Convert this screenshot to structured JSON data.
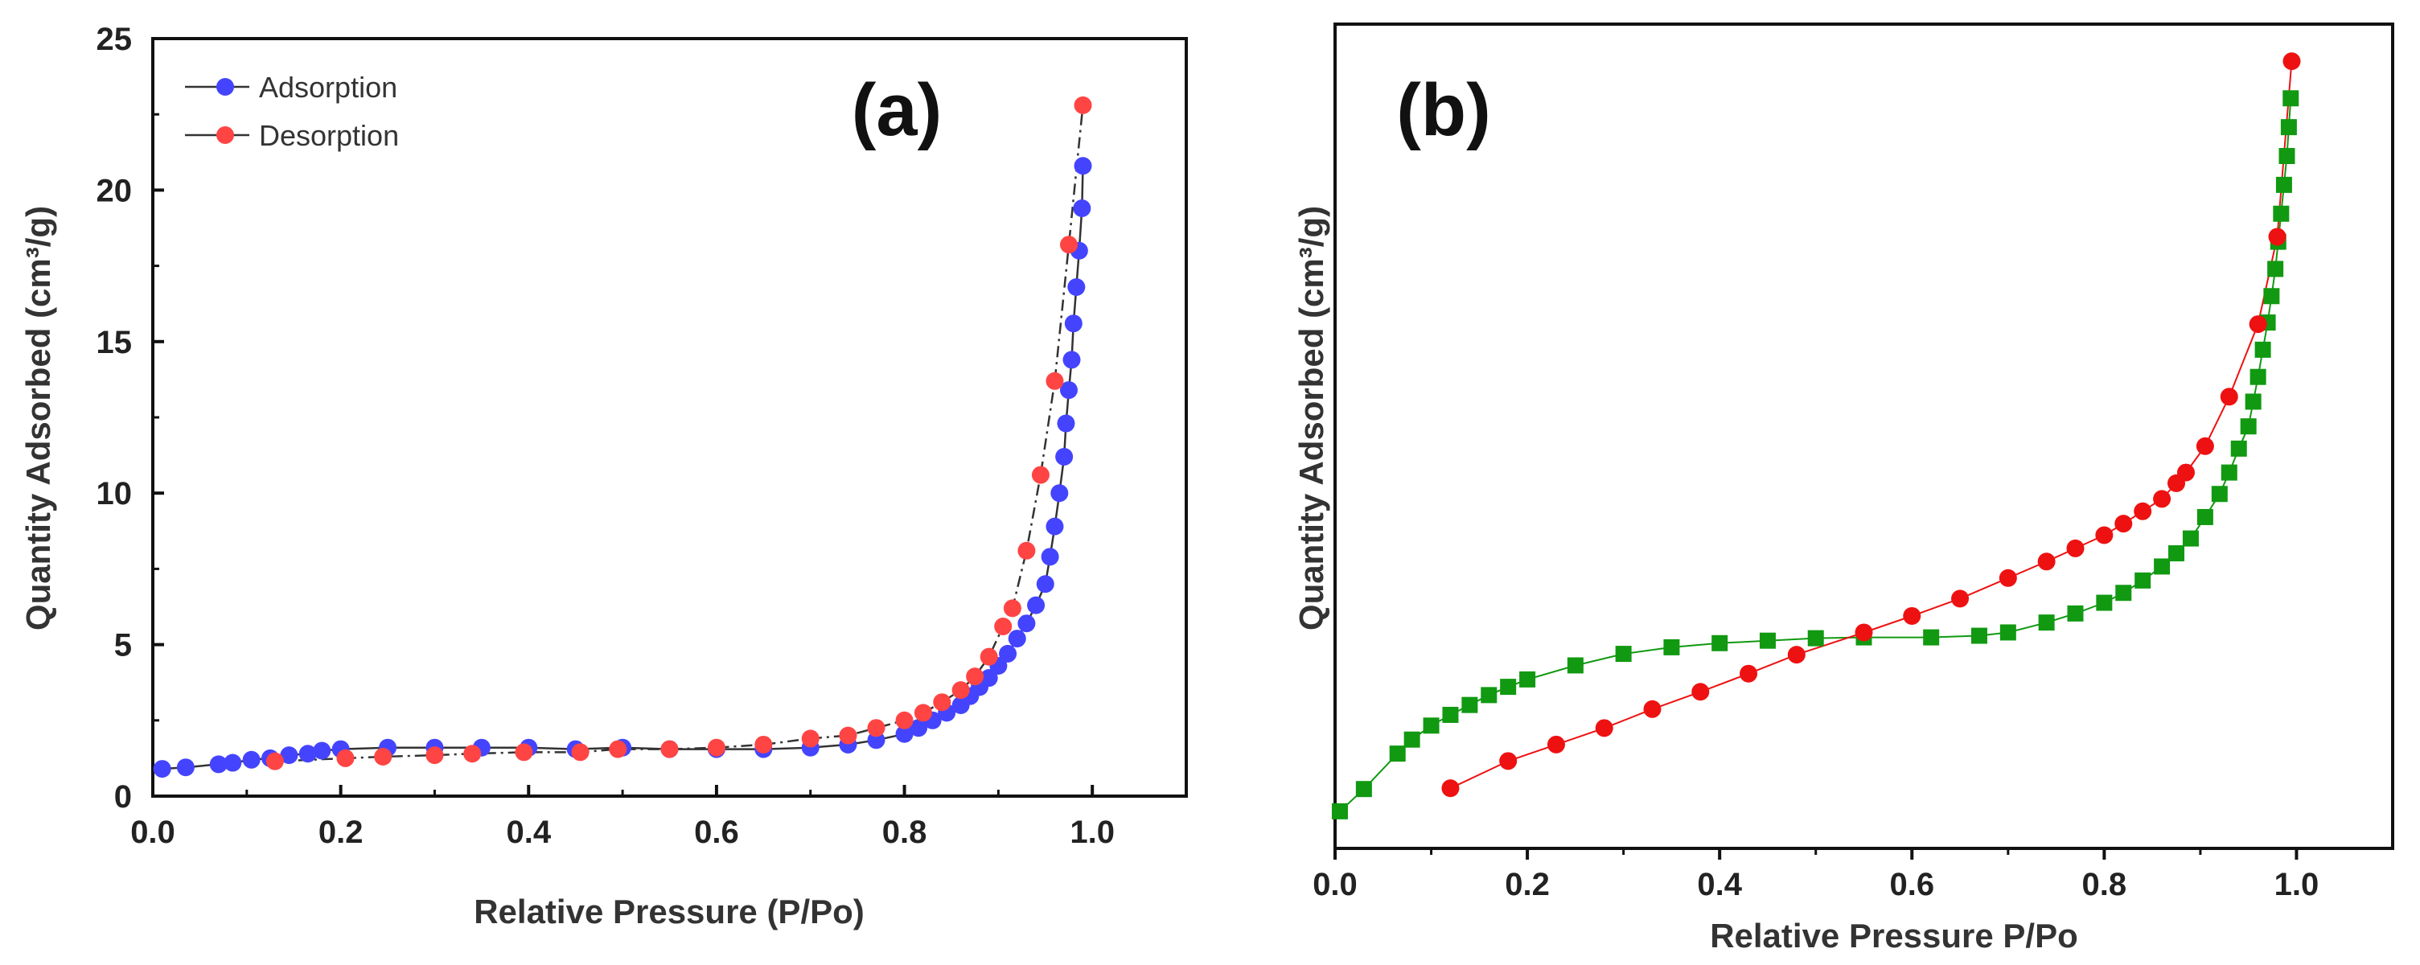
{
  "chart_data": [
    {
      "type": "scatter",
      "panel_label": "(a)",
      "xlabel": "Relative Pressure (P/Po)",
      "ylabel": "Quantity Adsorbed (cm³/g)",
      "xlim": [
        0.0,
        1.1
      ],
      "ylim": [
        0,
        25
      ],
      "xticks": [
        "0.0",
        "0.2",
        "0.4",
        "0.6",
        "0.8",
        "1.0"
      ],
      "yticks": [
        "0",
        "5",
        "10",
        "15",
        "20",
        "25"
      ],
      "legend_position": "top-left",
      "series": [
        {
          "name": "Adsorption",
          "color": "#4444ff",
          "marker": "circle",
          "x": [
            0.01,
            0.035,
            0.07,
            0.085,
            0.105,
            0.125,
            0.145,
            0.165,
            0.18,
            0.2,
            0.25,
            0.3,
            0.35,
            0.4,
            0.45,
            0.5,
            0.55,
            0.6,
            0.65,
            0.7,
            0.74,
            0.77,
            0.8,
            0.815,
            0.83,
            0.845,
            0.86,
            0.87,
            0.88,
            0.89,
            0.9,
            0.91,
            0.92,
            0.93,
            0.94,
            0.95,
            0.955,
            0.96,
            0.965,
            0.97,
            0.972,
            0.975,
            0.978,
            0.98,
            0.983,
            0.986,
            0.989,
            0.99
          ],
          "y": [
            0.9,
            0.95,
            1.05,
            1.1,
            1.2,
            1.25,
            1.35,
            1.4,
            1.5,
            1.55,
            1.6,
            1.6,
            1.6,
            1.6,
            1.55,
            1.6,
            1.55,
            1.55,
            1.55,
            1.6,
            1.7,
            1.85,
            2.05,
            2.25,
            2.5,
            2.75,
            3.0,
            3.3,
            3.6,
            3.9,
            4.3,
            4.7,
            5.2,
            5.7,
            6.3,
            7.0,
            7.9,
            8.9,
            10.0,
            11.2,
            12.3,
            13.4,
            14.4,
            15.6,
            16.8,
            18.0,
            19.4,
            20.8
          ]
        },
        {
          "name": "Desorption",
          "color": "#ff4444",
          "marker": "circle",
          "x": [
            0.13,
            0.205,
            0.245,
            0.3,
            0.34,
            0.395,
            0.455,
            0.495,
            0.55,
            0.6,
            0.65,
            0.7,
            0.74,
            0.77,
            0.8,
            0.82,
            0.84,
            0.86,
            0.875,
            0.89,
            0.905,
            0.915,
            0.93,
            0.945,
            0.96,
            0.975,
            0.99
          ],
          "y": [
            1.15,
            1.25,
            1.3,
            1.35,
            1.4,
            1.45,
            1.45,
            1.55,
            1.55,
            1.6,
            1.7,
            1.9,
            2.0,
            2.25,
            2.5,
            2.75,
            3.1,
            3.5,
            3.95,
            4.6,
            5.6,
            6.2,
            8.1,
            10.6,
            13.7,
            18.2,
            22.8
          ]
        }
      ]
    },
    {
      "type": "scatter",
      "panel_label": "(b)",
      "xlabel": "Relative Pressure P/Po",
      "ylabel": "Quantity Adsorbed (cm³/g)",
      "xlim": [
        0.0,
        1.1
      ],
      "ylim": [
        0,
        100
      ],
      "xticks": [
        "0.0",
        "0.2",
        "0.4",
        "0.6",
        "0.8",
        "1.0"
      ],
      "yticks": [],
      "series": [
        {
          "color": "#119911",
          "marker": "square",
          "x": [
            0.005,
            0.03,
            0.065,
            0.08,
            0.1,
            0.12,
            0.14,
            0.16,
            0.18,
            0.2,
            0.25,
            0.3,
            0.35,
            0.4,
            0.45,
            0.5,
            0.55,
            0.62,
            0.67,
            0.7,
            0.74,
            0.77,
            0.8,
            0.82,
            0.84,
            0.86,
            0.875,
            0.89,
            0.905,
            0.92,
            0.93,
            0.94,
            0.95,
            0.955,
            0.96,
            0.965,
            0.97,
            0.974,
            0.978,
            0.981,
            0.984,
            0.987,
            0.99,
            0.992,
            0.994
          ],
          "y": [
            4.5,
            7.2,
            11.5,
            13.2,
            14.9,
            16.2,
            17.4,
            18.6,
            19.6,
            20.5,
            22.2,
            23.6,
            24.4,
            24.9,
            25.2,
            25.5,
            25.6,
            25.6,
            25.8,
            26.2,
            27.4,
            28.5,
            29.8,
            31.0,
            32.5,
            34.2,
            35.8,
            37.6,
            40.2,
            43.0,
            45.6,
            48.5,
            51.2,
            54.2,
            57.2,
            60.5,
            63.8,
            67.0,
            70.3,
            73.6,
            77.0,
            80.5,
            84.0,
            87.5,
            91.0
          ]
        },
        {
          "color": "#ee1111",
          "marker": "circle",
          "x": [
            0.12,
            0.18,
            0.23,
            0.28,
            0.33,
            0.38,
            0.43,
            0.48,
            0.55,
            0.6,
            0.65,
            0.7,
            0.74,
            0.77,
            0.8,
            0.82,
            0.84,
            0.86,
            0.875,
            0.885,
            0.905,
            0.93,
            0.96,
            0.98,
            0.995
          ],
          "y": [
            7.3,
            10.6,
            12.6,
            14.6,
            16.9,
            19.0,
            21.2,
            23.5,
            26.2,
            28.2,
            30.3,
            32.8,
            34.8,
            36.4,
            38.0,
            39.4,
            40.9,
            42.4,
            44.3,
            45.6,
            48.8,
            54.8,
            63.6,
            74.2,
            95.5
          ]
        }
      ]
    }
  ]
}
